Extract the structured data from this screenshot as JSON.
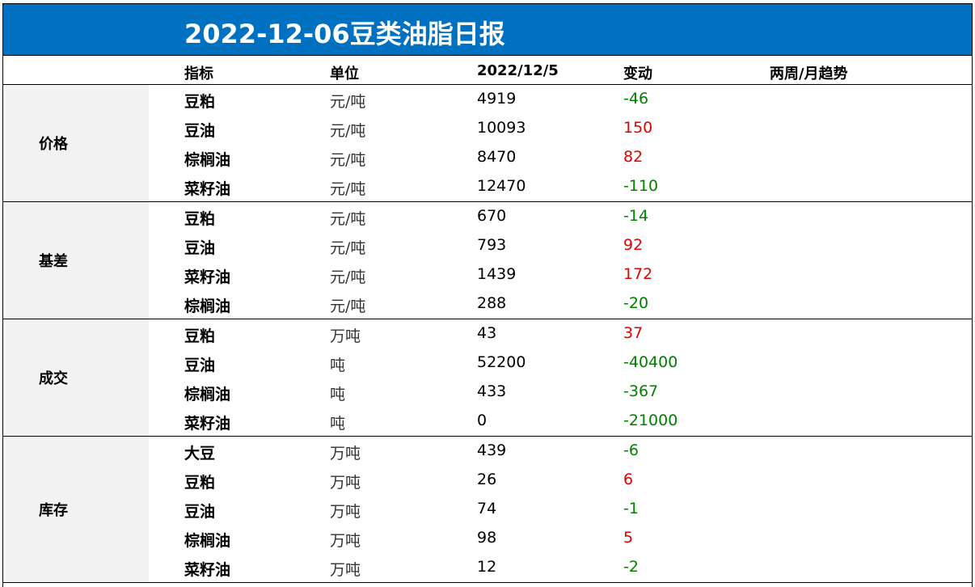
{
  "title": "2022-12-06豆类油脂日报",
  "columns": {
    "name": "指标",
    "unit": "单位",
    "date": "2022/12/5",
    "change": "变动",
    "trend": "两周/月趋势"
  },
  "groups": [
    {
      "label": "价格",
      "rows": [
        {
          "name": "豆粕",
          "unit": "元/吨",
          "value": "4919",
          "change": "-46"
        },
        {
          "name": "豆油",
          "unit": "元/吨",
          "value": "10093",
          "change": "150"
        },
        {
          "name": "棕榈油",
          "unit": "元/吨",
          "value": "8470",
          "change": "82"
        },
        {
          "name": "菜籽油",
          "unit": "元/吨",
          "value": "12470",
          "change": "-110"
        }
      ]
    },
    {
      "label": "基差",
      "rows": [
        {
          "name": "豆粕",
          "unit": "元/吨",
          "value": "670",
          "change": "-14"
        },
        {
          "name": "豆油",
          "unit": "元/吨",
          "value": "793",
          "change": "92"
        },
        {
          "name": "菜籽油",
          "unit": "元/吨",
          "value": "1439",
          "change": "172"
        },
        {
          "name": "棕榈油",
          "unit": "元/吨",
          "value": "288",
          "change": "-20"
        }
      ]
    },
    {
      "label": "成交",
      "rows": [
        {
          "name": "豆粕",
          "unit": "万吨",
          "value": "43",
          "change": "37"
        },
        {
          "name": "豆油",
          "unit": "吨",
          "value": "52200",
          "change": "-40400"
        },
        {
          "name": "棕榈油",
          "unit": "吨",
          "value": "433",
          "change": "-367"
        },
        {
          "name": "菜籽油",
          "unit": "吨",
          "value": "0",
          "change": "-21000"
        }
      ]
    },
    {
      "label": "库存",
      "rows": [
        {
          "name": "大豆",
          "unit": "万吨",
          "value": "439",
          "change": "-6"
        },
        {
          "name": "豆粕",
          "unit": "万吨",
          "value": "26",
          "change": "6"
        },
        {
          "name": "豆油",
          "unit": "万吨",
          "value": "74",
          "change": "-1"
        },
        {
          "name": "棕榈油",
          "unit": "万吨",
          "value": "98",
          "change": "5"
        },
        {
          "name": "菜籽油",
          "unit": "万吨",
          "value": "12",
          "change": "-2"
        }
      ]
    }
  ],
  "colors": {
    "title_bg": "#0070c0",
    "positive": "#e00000",
    "negative": "#008000",
    "group_bg": "#f2f2f2"
  }
}
